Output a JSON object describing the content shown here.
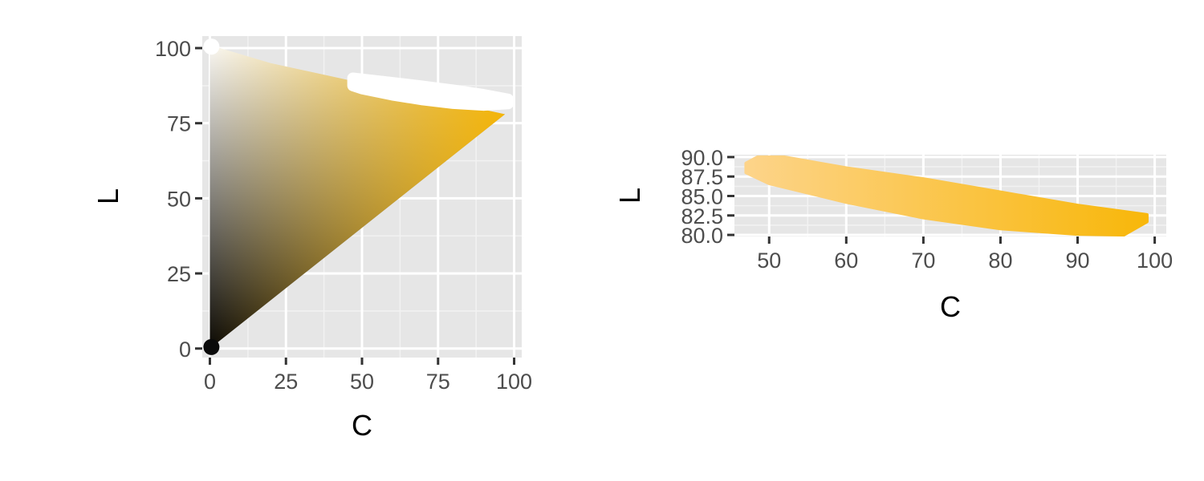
{
  "chart_data": [
    {
      "type": "scatter",
      "title": "",
      "xlabel": "C",
      "ylabel": "L",
      "xlim": [
        -2.5,
        102.5
      ],
      "ylim": [
        -3,
        104
      ],
      "x_ticks": [
        0,
        25,
        50,
        75,
        100
      ],
      "x_tick_labels": [
        "0",
        "25",
        "50",
        "75",
        "100"
      ],
      "y_ticks": [
        0,
        25,
        50,
        75,
        100
      ],
      "y_tick_labels": [
        "0",
        "25",
        "50",
        "75",
        "100"
      ],
      "grid": true,
      "legend": "none",
      "gamut": {
        "description": "filled region of L vs C, colored from black through gray/white to yellow",
        "outline": [
          [
            0,
            0
          ],
          [
            0,
            101
          ],
          [
            20,
            95
          ],
          [
            97,
            78
          ],
          [
            0,
            0
          ]
        ],
        "colors": {
          "black": "#000000",
          "white": "#ffffff",
          "yellow": "#f6b400"
        }
      },
      "highlight": {
        "color": "#ffffff",
        "upper": [
          [
            47,
            90
          ],
          [
            60,
            88.5
          ],
          [
            70,
            87.3
          ],
          [
            80,
            86
          ],
          [
            90,
            84.5
          ],
          [
            98,
            83
          ]
        ],
        "lower": [
          [
            98,
            81.5
          ],
          [
            90,
            81
          ],
          [
            80,
            81.6
          ],
          [
            70,
            82.8
          ],
          [
            60,
            84.4
          ],
          [
            50,
            86.5
          ],
          [
            47,
            87.5
          ]
        ]
      }
    },
    {
      "type": "scatter",
      "title": "",
      "xlabel": "C",
      "ylabel": "L",
      "xlim": [
        45.5,
        101.5
      ],
      "ylim": [
        79.8,
        90.3
      ],
      "x_ticks": [
        50,
        60,
        70,
        80,
        90,
        100
      ],
      "x_tick_labels": [
        "50",
        "60",
        "70",
        "80",
        "90",
        "100"
      ],
      "y_ticks": [
        80,
        82.5,
        85,
        87.5,
        90
      ],
      "y_tick_labels": [
        "80.0",
        "82.5",
        "85.0",
        "87.5",
        "90.0"
      ],
      "grid": true,
      "legend": "none",
      "band": {
        "upper": [
          [
            47,
            89.2
          ],
          [
            48.5,
            90
          ],
          [
            52,
            90
          ],
          [
            60,
            88.6
          ],
          [
            70,
            87.2
          ],
          [
            80,
            85.5
          ],
          [
            90,
            83.8
          ],
          [
            99,
            82.6
          ]
        ],
        "lower": [
          [
            99,
            81.7
          ],
          [
            96,
            80
          ],
          [
            90,
            80.1
          ],
          [
            80,
            80.8
          ],
          [
            70,
            82.2
          ],
          [
            60,
            84.2
          ],
          [
            50,
            86.6
          ],
          [
            47,
            88
          ]
        ],
        "color_start": "#fdd48a",
        "color_end": "#f8b70a"
      }
    }
  ]
}
